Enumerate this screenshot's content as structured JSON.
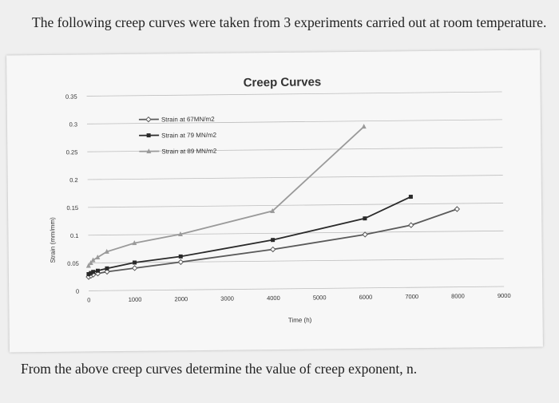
{
  "question_text": "The following creep curves were taken from 3 experiments carried out at room temperature.",
  "followup_text": "From the above creep curves determine the value of creep exponent, n.",
  "chart_data": {
    "type": "line",
    "title": "Creep Curves",
    "xlabel": "Time (h)",
    "ylabel": "Strain (mm/mm)",
    "xlim": [
      0,
      9000
    ],
    "ylim": [
      0,
      0.35
    ],
    "x_ticks": [
      "0",
      "1000",
      "2000",
      "3000",
      "4000",
      "5000",
      "6000",
      "7000",
      "8000",
      "9000"
    ],
    "y_ticks": [
      "0",
      "0.05",
      "0.1",
      "0.15",
      "0.2",
      "0.25",
      "0.3",
      "0.35"
    ],
    "grid": true,
    "legend_position": "top-left",
    "series": [
      {
        "name": "Strain at 67MN/m2",
        "color": "#5a5a5a",
        "marker": "diamond-open",
        "x": [
          0,
          50,
          100,
          200,
          400,
          1000,
          2000,
          4000,
          6000,
          7000,
          8000
        ],
        "y": [
          0.025,
          0.027,
          0.029,
          0.031,
          0.034,
          0.04,
          0.05,
          0.071,
          0.096,
          0.112,
          0.14
        ]
      },
      {
        "name": "Strain at 79 MN/m2",
        "color": "#2a2a2a",
        "marker": "square",
        "x": [
          0,
          50,
          100,
          200,
          400,
          1000,
          2000,
          4000,
          6000,
          7000
        ],
        "y": [
          0.03,
          0.032,
          0.034,
          0.036,
          0.04,
          0.05,
          0.06,
          0.088,
          0.125,
          0.163
        ]
      },
      {
        "name": "Strain at 89 MN/m2",
        "color": "#9a9a9a",
        "marker": "triangle",
        "x": [
          0,
          50,
          100,
          200,
          400,
          1000,
          2000,
          4000,
          6000
        ],
        "y": [
          0.045,
          0.05,
          0.055,
          0.06,
          0.07,
          0.085,
          0.1,
          0.14,
          0.29
        ]
      }
    ]
  }
}
